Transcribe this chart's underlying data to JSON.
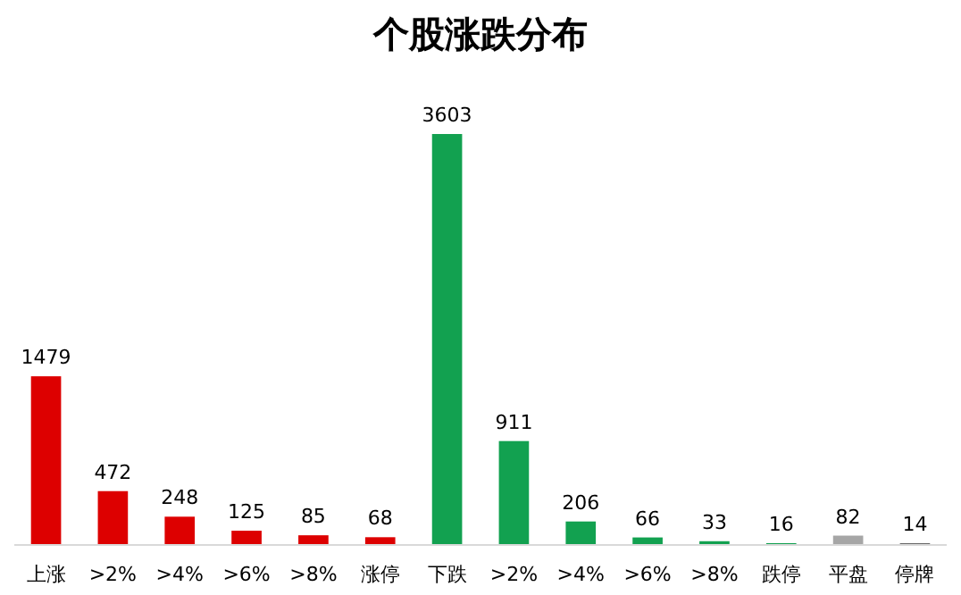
{
  "chart_data": {
    "type": "bar",
    "title": "个股涨跌分布",
    "categories": [
      "上涨",
      ">2%",
      ">4%",
      ">6%",
      ">8%",
      "涨停",
      "下跌",
      ">2%",
      ">4%",
      ">6%",
      ">8%",
      "跌停",
      "平盘",
      "停牌"
    ],
    "values": [
      1479,
      472,
      248,
      125,
      85,
      68,
      3603,
      911,
      206,
      66,
      33,
      16,
      82,
      14
    ],
    "colors": [
      "#dd0000",
      "#dd0000",
      "#dd0000",
      "#dd0000",
      "#dd0000",
      "#dd0000",
      "#12a150",
      "#12a150",
      "#12a150",
      "#12a150",
      "#12a150",
      "#12a150",
      "#a6a6a6",
      "#404040"
    ],
    "data_labels": true
  }
}
